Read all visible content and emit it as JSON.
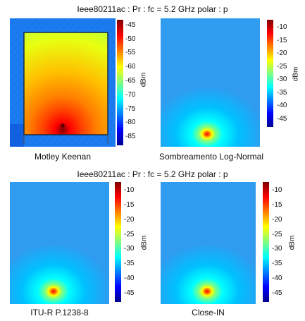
{
  "titles": {
    "top": "Ieee80211ac : Pr : fc = 5.2 GHz polar : p",
    "bottom": "Ieee80211ac : Pr : fc = 5.2 GHz polar : p"
  },
  "colors": {
    "jet": [
      "#00008f",
      "#0000ff",
      "#0080ff",
      "#00ffff",
      "#80ff80",
      "#ffff00",
      "#ff8000",
      "#ff0000",
      "#800000"
    ],
    "far_field": "#2f9cf0"
  },
  "chart_data": [
    {
      "type": "heatmap",
      "title": "Motley Keenan",
      "colorbar_label": "dBm",
      "colorbar_ticks": [
        "-45",
        "-50",
        "-55",
        "-60",
        "-65",
        "-70",
        "-75",
        "-80",
        "-85"
      ],
      "color_range": [
        -88,
        -43
      ],
      "source_position": "bottom-center",
      "building_outline": true
    },
    {
      "type": "heatmap",
      "title": "Sombreamento Log-Normal",
      "colorbar_label": "dBm",
      "colorbar_ticks": [
        "-10",
        "-15",
        "-20",
        "-25",
        "-30",
        "-35",
        "-40",
        "-45"
      ],
      "color_range": [
        -48,
        -7
      ],
      "source_position": "bottom-center",
      "building_outline": false
    },
    {
      "type": "heatmap",
      "title": "ITU-R P.1238-8",
      "colorbar_label": "dBm",
      "colorbar_ticks": [
        "-10",
        "-15",
        "-20",
        "-25",
        "-30",
        "-35",
        "-40",
        "-45"
      ],
      "color_range": [
        -48,
        -7
      ],
      "source_position": "bottom-center",
      "building_outline": false
    },
    {
      "type": "heatmap",
      "title": "Close-IN",
      "colorbar_label": "dBm",
      "colorbar_ticks": [
        "-10",
        "-15",
        "-20",
        "-25",
        "-30",
        "-35",
        "-40",
        "-45"
      ],
      "color_range": [
        -48,
        -7
      ],
      "source_position": "bottom-center",
      "building_outline": false
    }
  ]
}
